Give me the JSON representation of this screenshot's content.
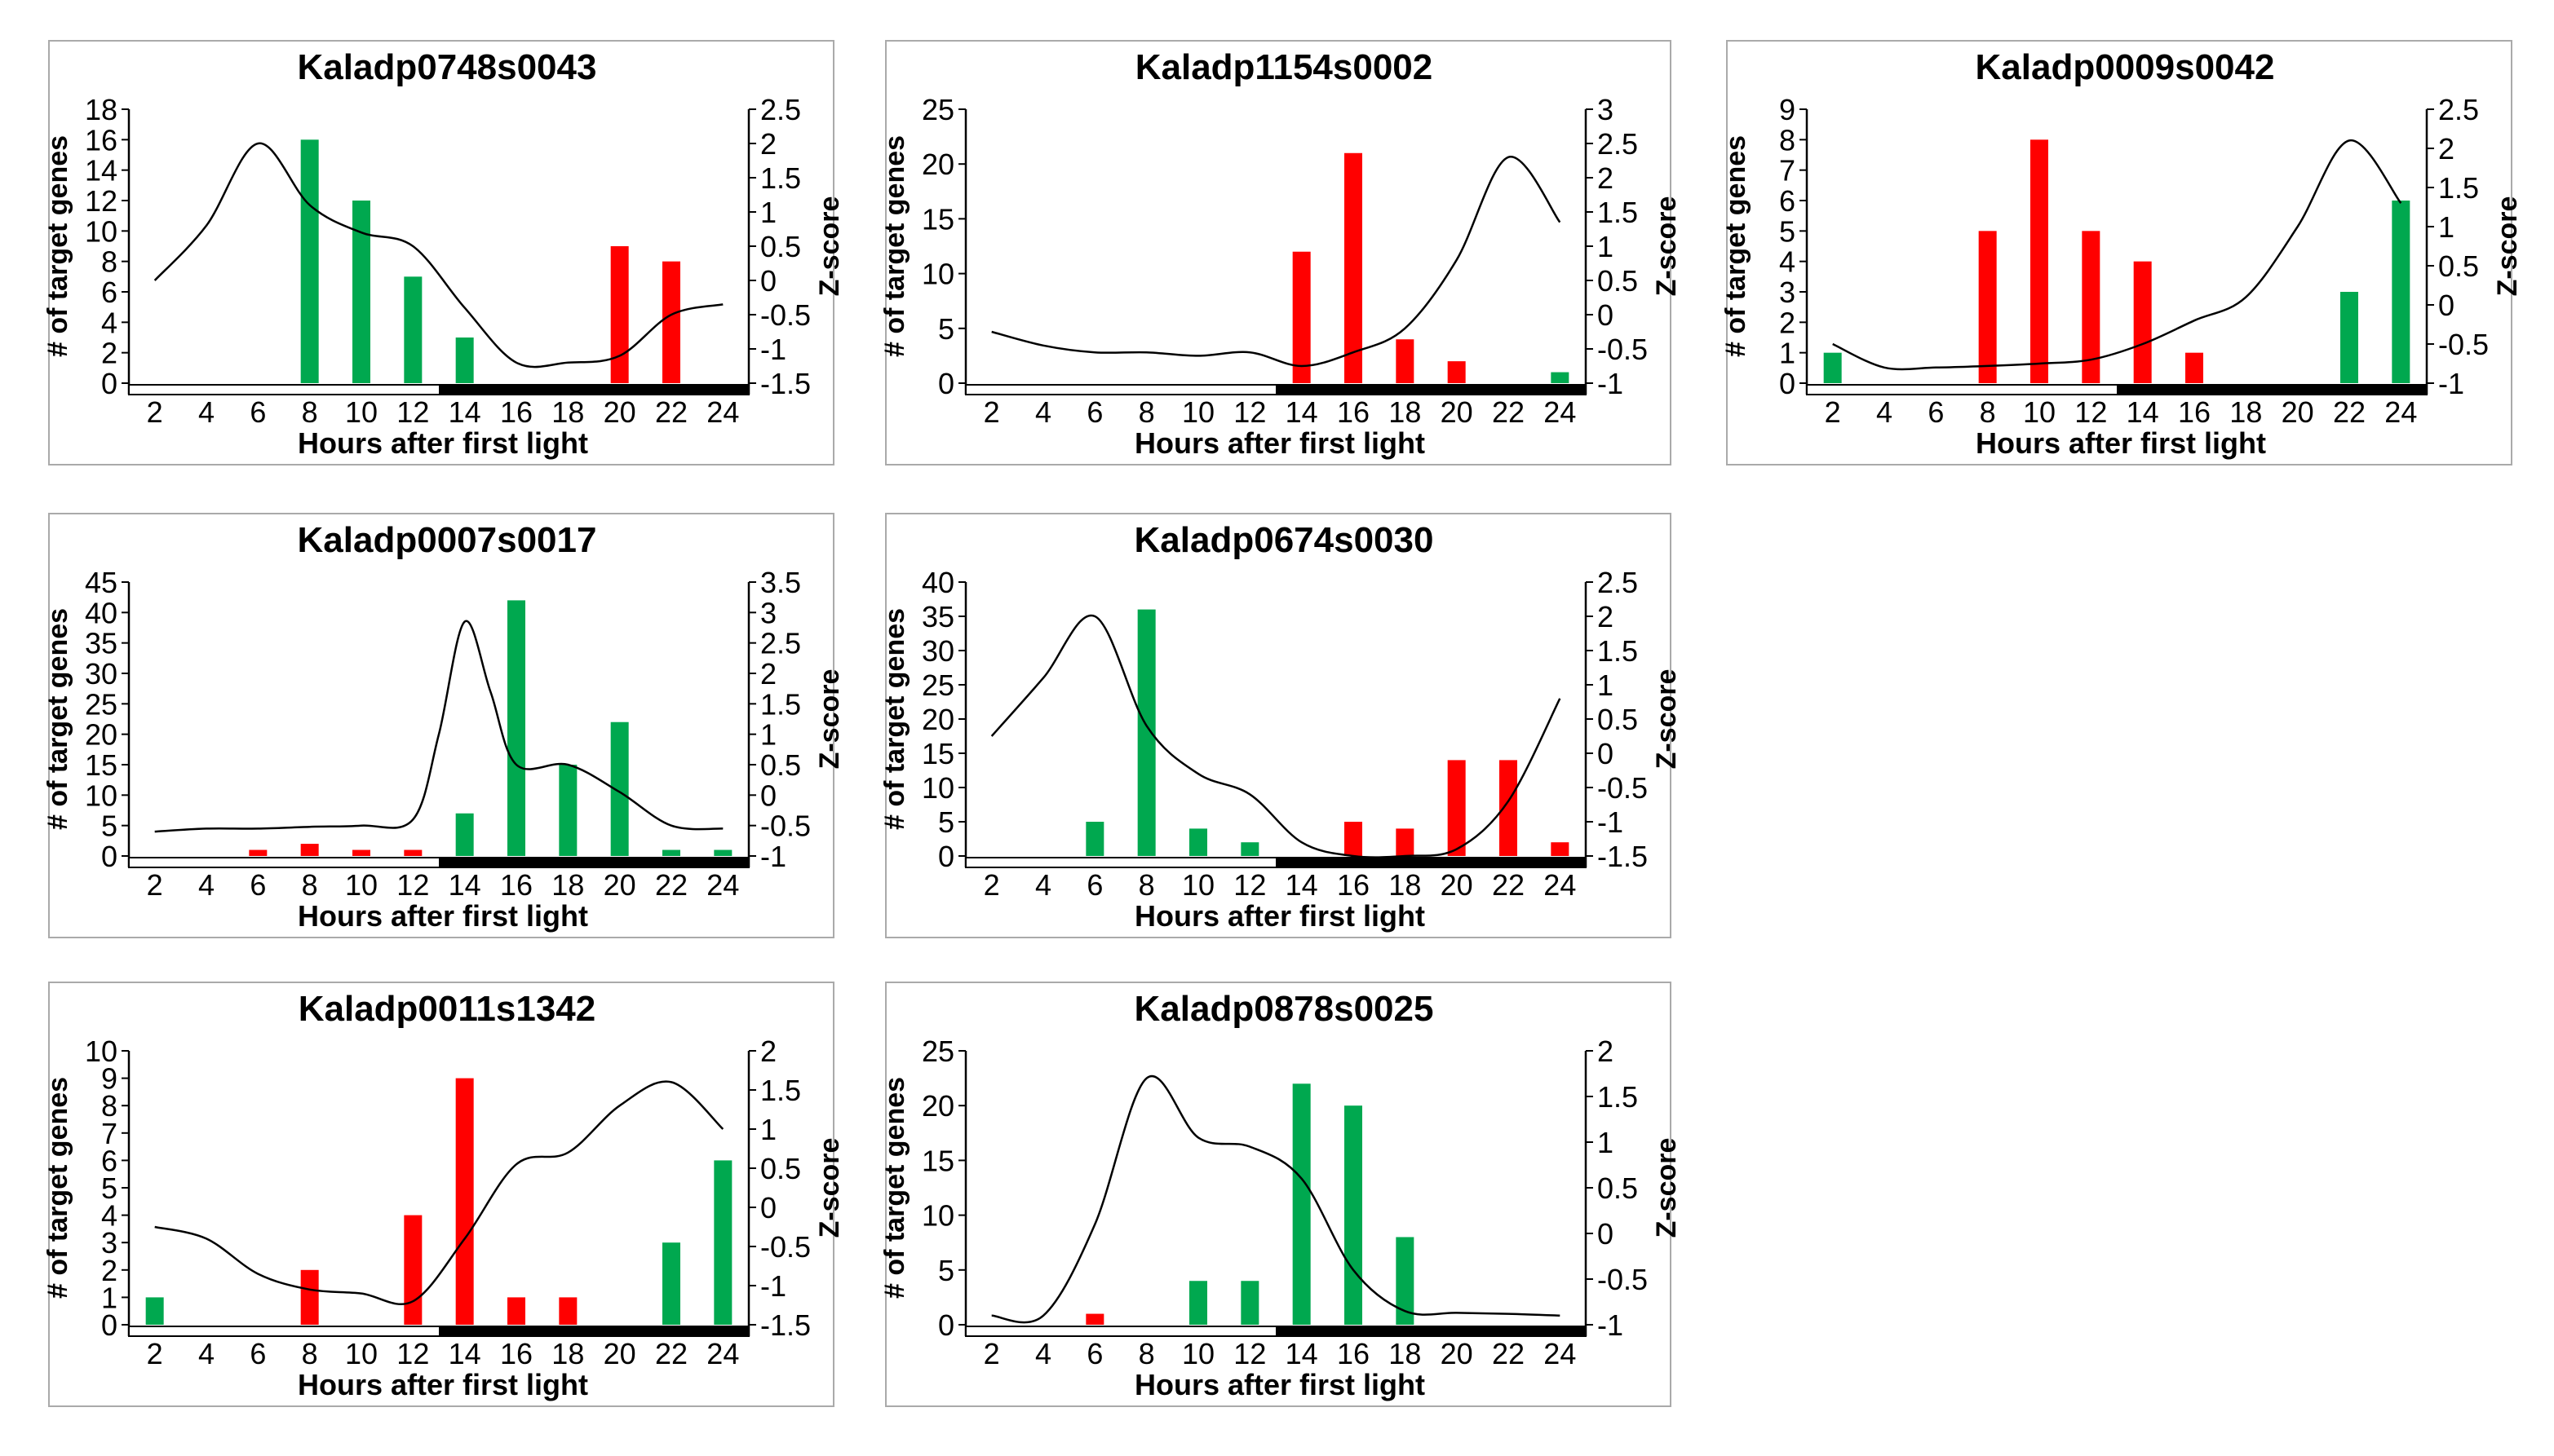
{
  "figure": {
    "x_axis_label": "Hours after first light",
    "y_left_label": "# of target genes",
    "y_right_label": "Z-score"
  },
  "chart_data": [
    {
      "type": "bar",
      "title": "Kaladp0748s0043",
      "xlabel": "Hours after first light",
      "ylabel": "# of target genes",
      "y2label": "Z-score",
      "categories": [
        "2",
        "4",
        "6",
        "8",
        "10",
        "12",
        "14",
        "16",
        "18",
        "20",
        "22",
        "24"
      ],
      "ylim": [
        0,
        18
      ],
      "yticks": [
        0,
        2,
        4,
        6,
        8,
        10,
        12,
        14,
        16,
        18
      ],
      "y2lim": [
        -1.5,
        2.5
      ],
      "y2ticks": [
        -1.5,
        -1,
        -0.5,
        0,
        0.5,
        1,
        1.5,
        2,
        2.5
      ],
      "dark_period_start": 13,
      "bars": [
        {
          "x": 8,
          "value": 16,
          "color": "#00A84F"
        },
        {
          "x": 10,
          "value": 12,
          "color": "#00A84F"
        },
        {
          "x": 12,
          "value": 7,
          "color": "#00A84F"
        },
        {
          "x": 14,
          "value": 3,
          "color": "#00A84F"
        },
        {
          "x": 20,
          "value": 9,
          "color": "#FF0000"
        },
        {
          "x": 22,
          "value": 8,
          "color": "#FF0000"
        }
      ],
      "zscore": {
        "x": [
          2,
          4,
          6,
          8,
          10,
          12,
          14,
          16,
          18,
          20,
          22,
          24
        ],
        "y": [
          0,
          0.8,
          2,
          1.1,
          0.7,
          0.5,
          -0.4,
          -1.2,
          -1.2,
          -1.1,
          -0.5,
          -0.35
        ]
      }
    },
    {
      "type": "bar",
      "title": "Kaladp1154s0002",
      "xlabel": "Hours after first light",
      "ylabel": "# of target genes",
      "y2label": "Z-score",
      "categories": [
        "2",
        "4",
        "6",
        "8",
        "10",
        "12",
        "14",
        "16",
        "18",
        "20",
        "22",
        "24"
      ],
      "ylim": [
        0,
        25
      ],
      "yticks": [
        0,
        5,
        10,
        15,
        20,
        25
      ],
      "y2lim": [
        -1,
        3
      ],
      "y2ticks": [
        -1,
        -0.5,
        0,
        0.5,
        1,
        1.5,
        2,
        2.5,
        3
      ],
      "dark_period_start": 13,
      "bars": [
        {
          "x": 14,
          "value": 12,
          "color": "#FF0000"
        },
        {
          "x": 16,
          "value": 21,
          "color": "#FF0000"
        },
        {
          "x": 18,
          "value": 4,
          "color": "#FF0000"
        },
        {
          "x": 20,
          "value": 2,
          "color": "#FF0000"
        },
        {
          "x": 24,
          "value": 1,
          "color": "#00A84F"
        }
      ],
      "zscore": {
        "x": [
          2,
          4,
          6,
          8,
          10,
          12,
          14,
          16,
          18,
          20,
          22,
          24
        ],
        "y": [
          -0.25,
          -0.45,
          -0.55,
          -0.55,
          -0.6,
          -0.55,
          -0.75,
          -0.55,
          -0.2,
          0.8,
          2.3,
          1.35
        ]
      }
    },
    {
      "type": "bar",
      "title": "Kaladp0009s0042",
      "xlabel": "Hours after first light",
      "ylabel": "# of target genes",
      "y2label": "Z-score",
      "categories": [
        "2",
        "4",
        "6",
        "8",
        "10",
        "12",
        "14",
        "16",
        "18",
        "20",
        "22",
        "24"
      ],
      "ylim": [
        0,
        9
      ],
      "yticks": [
        0,
        1,
        2,
        3,
        4,
        5,
        6,
        7,
        8,
        9
      ],
      "y2lim": [
        -1,
        2.5
      ],
      "y2ticks": [
        -1,
        -0.5,
        0,
        0.5,
        1,
        1.5,
        2,
        2.5
      ],
      "dark_period_start": 13,
      "bars": [
        {
          "x": 2,
          "value": 1,
          "color": "#00A84F"
        },
        {
          "x": 8,
          "value": 5,
          "color": "#FF0000"
        },
        {
          "x": 10,
          "value": 8,
          "color": "#FF0000"
        },
        {
          "x": 12,
          "value": 5,
          "color": "#FF0000"
        },
        {
          "x": 14,
          "value": 4,
          "color": "#FF0000"
        },
        {
          "x": 16,
          "value": 1,
          "color": "#FF0000"
        },
        {
          "x": 22,
          "value": 3,
          "color": "#00A84F"
        },
        {
          "x": 24,
          "value": 6,
          "color": "#00A84F"
        }
      ],
      "zscore": {
        "x": [
          2,
          4,
          6,
          8,
          10,
          12,
          14,
          16,
          18,
          20,
          22,
          24
        ],
        "y": [
          -0.5,
          -0.8,
          -0.8,
          -0.78,
          -0.75,
          -0.7,
          -0.5,
          -0.2,
          0.1,
          1.0,
          2.1,
          1.3
        ]
      }
    },
    {
      "type": "bar",
      "title": "Kaladp0007s0017",
      "xlabel": "Hours after first light",
      "ylabel": "# of target genes",
      "y2label": "Z-score",
      "categories": [
        "2",
        "4",
        "6",
        "8",
        "10",
        "12",
        "14",
        "16",
        "18",
        "20",
        "22",
        "24"
      ],
      "ylim": [
        0,
        45
      ],
      "yticks": [
        0,
        5,
        10,
        15,
        20,
        25,
        30,
        35,
        40,
        45
      ],
      "y2lim": [
        -1,
        3.5
      ],
      "y2ticks": [
        -1,
        -0.5,
        0,
        0.5,
        1,
        1.5,
        2,
        2.5,
        3,
        3.5
      ],
      "dark_period_start": 13,
      "bars": [
        {
          "x": 6,
          "value": 1,
          "color": "#FF0000"
        },
        {
          "x": 8,
          "value": 2,
          "color": "#FF0000"
        },
        {
          "x": 10,
          "value": 1,
          "color": "#FF0000"
        },
        {
          "x": 12,
          "value": 1,
          "color": "#FF0000"
        },
        {
          "x": 14,
          "value": 7,
          "color": "#00A84F"
        },
        {
          "x": 16,
          "value": 42,
          "color": "#00A84F"
        },
        {
          "x": 18,
          "value": 15,
          "color": "#00A84F"
        },
        {
          "x": 20,
          "value": 22,
          "color": "#00A84F"
        },
        {
          "x": 22,
          "value": 1,
          "color": "#00A84F"
        },
        {
          "x": 24,
          "value": 1,
          "color": "#00A84F"
        }
      ],
      "zscore": {
        "x": [
          2,
          4,
          6,
          8,
          10,
          12,
          13,
          14,
          15,
          16,
          18,
          20,
          22,
          24
        ],
        "y": [
          -0.6,
          -0.55,
          -0.55,
          -0.52,
          -0.5,
          -0.4,
          1.0,
          2.85,
          1.7,
          0.5,
          0.5,
          0.05,
          -0.5,
          -0.55
        ]
      }
    },
    {
      "type": "bar",
      "title": "Kaladp0674s0030",
      "xlabel": "Hours after first light",
      "ylabel": "# of target genes",
      "y2label": "Z-score",
      "categories": [
        "2",
        "4",
        "6",
        "8",
        "10",
        "12",
        "14",
        "16",
        "18",
        "20",
        "22",
        "24"
      ],
      "ylim": [
        0,
        40
      ],
      "yticks": [
        0,
        5,
        10,
        15,
        20,
        25,
        30,
        35,
        40
      ],
      "y2lim": [
        -1.5,
        2.5
      ],
      "y2ticks": [
        -1.5,
        -1,
        -0.5,
        0,
        0.5,
        1,
        1.5,
        2,
        2.5
      ],
      "dark_period_start": 13,
      "bars": [
        {
          "x": 6,
          "value": 5,
          "color": "#00A84F"
        },
        {
          "x": 8,
          "value": 36,
          "color": "#00A84F"
        },
        {
          "x": 10,
          "value": 4,
          "color": "#00A84F"
        },
        {
          "x": 12,
          "value": 2,
          "color": "#00A84F"
        },
        {
          "x": 16,
          "value": 5,
          "color": "#FF0000"
        },
        {
          "x": 18,
          "value": 4,
          "color": "#FF0000"
        },
        {
          "x": 20,
          "value": 14,
          "color": "#FF0000"
        },
        {
          "x": 22,
          "value": 14,
          "color": "#FF0000"
        },
        {
          "x": 24,
          "value": 2,
          "color": "#FF0000"
        }
      ],
      "zscore": {
        "x": [
          2,
          4,
          6,
          8,
          10,
          12,
          14,
          16,
          18,
          20,
          22,
          24
        ],
        "y": [
          0.25,
          1.1,
          2.0,
          0.4,
          -0.3,
          -0.6,
          -1.3,
          -1.5,
          -1.5,
          -1.4,
          -0.7,
          0.8
        ]
      }
    },
    {
      "type": "bar",
      "title": "Kaladp0011s1342",
      "xlabel": "Hours after first light",
      "ylabel": "# of target genes",
      "y2label": "Z-score",
      "categories": [
        "2",
        "4",
        "6",
        "8",
        "10",
        "12",
        "14",
        "16",
        "18",
        "20",
        "22",
        "24"
      ],
      "ylim": [
        0,
        10
      ],
      "yticks": [
        0,
        1,
        2,
        3,
        4,
        5,
        6,
        7,
        8,
        9,
        10
      ],
      "y2lim": [
        -1.5,
        2
      ],
      "y2ticks": [
        -1.5,
        -1,
        -0.5,
        0,
        0.5,
        1,
        1.5,
        2
      ],
      "dark_period_start": 13,
      "bars": [
        {
          "x": 2,
          "value": 1,
          "color": "#00A84F"
        },
        {
          "x": 8,
          "value": 2,
          "color": "#FF0000"
        },
        {
          "x": 12,
          "value": 4,
          "color": "#FF0000"
        },
        {
          "x": 14,
          "value": 9,
          "color": "#FF0000"
        },
        {
          "x": 16,
          "value": 1,
          "color": "#FF0000"
        },
        {
          "x": 18,
          "value": 1,
          "color": "#FF0000"
        },
        {
          "x": 22,
          "value": 3,
          "color": "#00A84F"
        },
        {
          "x": 24,
          "value": 6,
          "color": "#00A84F"
        }
      ],
      "zscore": {
        "x": [
          2,
          4,
          6,
          8,
          10,
          12,
          14,
          16,
          18,
          20,
          22,
          24
        ],
        "y": [
          -0.25,
          -0.4,
          -0.85,
          -1.05,
          -1.1,
          -1.2,
          -0.4,
          0.55,
          0.7,
          1.3,
          1.6,
          1.0
        ]
      }
    },
    {
      "type": "bar",
      "title": "Kaladp0878s0025",
      "xlabel": "Hours after first light",
      "ylabel": "# of target genes",
      "y2label": "Z-score",
      "categories": [
        "2",
        "4",
        "6",
        "8",
        "10",
        "12",
        "14",
        "16",
        "18",
        "20",
        "22",
        "24"
      ],
      "ylim": [
        0,
        25
      ],
      "yticks": [
        0,
        5,
        10,
        15,
        20,
        25
      ],
      "y2lim": [
        -1,
        2
      ],
      "y2ticks": [
        -1,
        -0.5,
        0,
        0.5,
        1,
        1.5,
        2
      ],
      "dark_period_start": 13,
      "bars": [
        {
          "x": 6,
          "value": 1,
          "color": "#FF0000"
        },
        {
          "x": 10,
          "value": 4,
          "color": "#00A84F"
        },
        {
          "x": 12,
          "value": 4,
          "color": "#00A84F"
        },
        {
          "x": 14,
          "value": 22,
          "color": "#00A84F"
        },
        {
          "x": 16,
          "value": 20,
          "color": "#00A84F"
        },
        {
          "x": 18,
          "value": 8,
          "color": "#00A84F"
        }
      ],
      "zscore": {
        "x": [
          2,
          4,
          6,
          8,
          10,
          12,
          14,
          16,
          18,
          20,
          22,
          24
        ],
        "y": [
          -0.9,
          -0.9,
          0.1,
          1.7,
          1.05,
          0.95,
          0.6,
          -0.4,
          -0.85,
          -0.87,
          -0.88,
          -0.9
        ]
      }
    }
  ]
}
